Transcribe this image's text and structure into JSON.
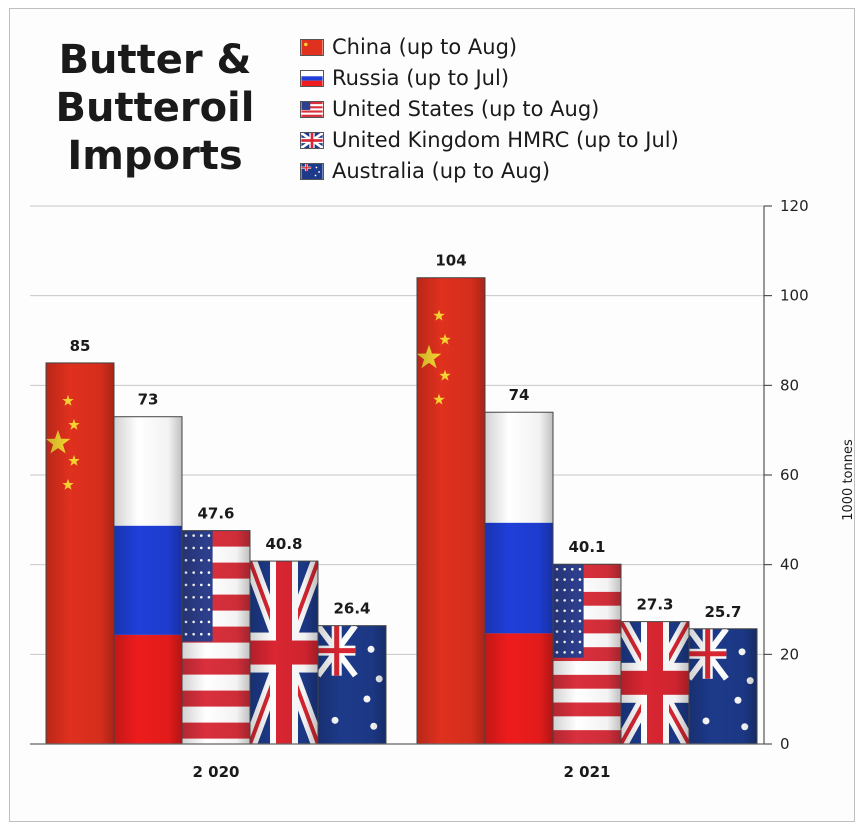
{
  "chart_data": {
    "type": "bar",
    "title": "Butter & Butteroil Imports",
    "title_lines": [
      "Butter &",
      "Butteroil",
      "Imports"
    ],
    "categories": [
      "2 020",
      "2 021"
    ],
    "series": [
      {
        "name": "China (up to Aug)",
        "flag": "china",
        "values": [
          85,
          104
        ],
        "labels": [
          "85",
          "104"
        ]
      },
      {
        "name": "Russia (up to Jul)",
        "flag": "russia",
        "values": [
          73,
          74
        ],
        "labels": [
          "73",
          "74"
        ]
      },
      {
        "name": "United States (up to Aug)",
        "flag": "usa",
        "values": [
          47.6,
          40.1
        ],
        "labels": [
          "47.6",
          "40.1"
        ]
      },
      {
        "name": "United Kingdom HMRC (up to Jul)",
        "flag": "uk",
        "values": [
          40.8,
          27.3
        ],
        "labels": [
          "40.8",
          "27.3"
        ]
      },
      {
        "name": "Australia (up to Aug)",
        "flag": "australia",
        "values": [
          26.4,
          25.7
        ],
        "labels": [
          "26.4",
          "25.7"
        ]
      }
    ],
    "ylabel": "1000 tonnes",
    "ylim": [
      0,
      120
    ],
    "yticks": [
      "0",
      "20",
      "40",
      "60",
      "80",
      "100",
      "120"
    ],
    "y_axis_position": "right",
    "grid": true,
    "legend_position": "top"
  },
  "colors": {
    "china_red": "#e0301e",
    "china_star": "#f6d531",
    "russia_blue": "#1f3fd8",
    "russia_red": "#ee1c1c",
    "usa_red": "#d9303c",
    "usa_blue": "#2d3e8c",
    "uk_blue": "#1d3a8a",
    "uk_red": "#d92632",
    "gridline": "#c8c8c8"
  }
}
